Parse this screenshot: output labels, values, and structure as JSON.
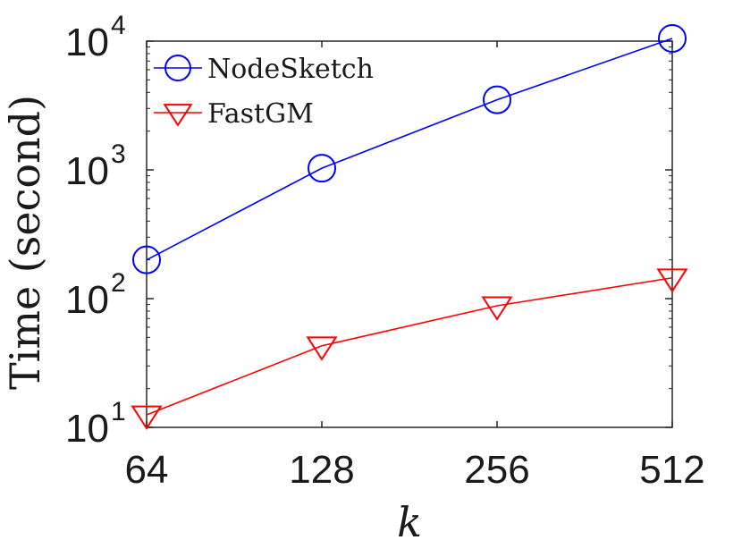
{
  "chart_data": {
    "type": "line",
    "x_scale": "log2",
    "y_scale": "log10",
    "categories": [
      "64",
      "128",
      "256",
      "512"
    ],
    "x": [
      64,
      128,
      256,
      512
    ],
    "xlim": [
      64,
      512
    ],
    "ylim": [
      10,
      10000
    ],
    "xlabel": "k",
    "ylabel": "Time (second)",
    "y_ticks": [
      {
        "base": "10",
        "exp": "1",
        "value": 10
      },
      {
        "base": "10",
        "exp": "2",
        "value": 100
      },
      {
        "base": "10",
        "exp": "3",
        "value": 1000
      },
      {
        "base": "10",
        "exp": "4",
        "value": 10000
      }
    ],
    "legend_position": "top-left",
    "grid": false,
    "series": [
      {
        "name": "NodeSketch",
        "color": "#0000ff",
        "marker": "circle",
        "values": [
          200,
          1030,
          3500,
          10500
        ]
      },
      {
        "name": "FastGM",
        "color": "#ff0000",
        "marker": "triangle-down",
        "values": [
          12.5,
          43,
          88,
          145
        ]
      }
    ]
  }
}
